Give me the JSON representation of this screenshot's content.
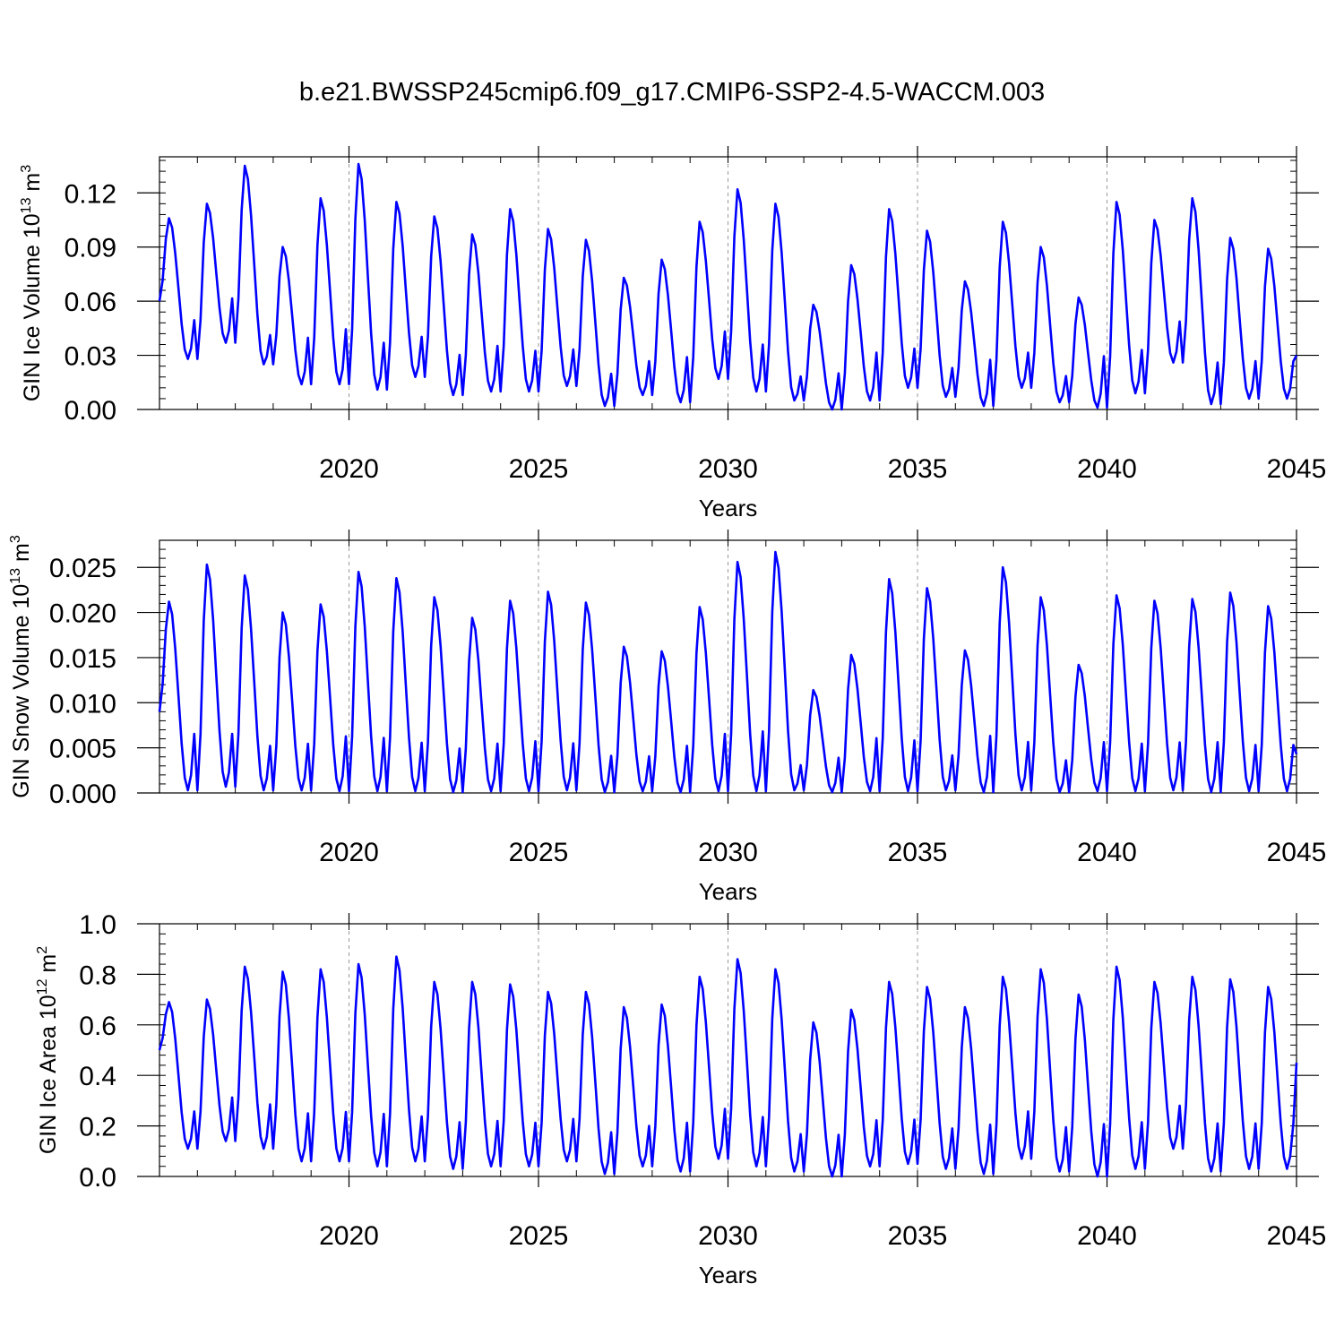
{
  "figure": {
    "title": "b.e21.BWSSP245cmip6.f09_g17.CMIP6-SSP2-4.5-WACCM.003"
  },
  "colors": {
    "line": "#0000ff",
    "axes": "#000000",
    "grid": "#999999"
  },
  "chart_data": [
    {
      "type": "line",
      "title": "",
      "xlabel": "Years",
      "ylabel": "GIN Ice Volume",
      "ylabel_unit_base": "10",
      "ylabel_unit_exp": "13",
      "ylabel_unit_tail": "m",
      "ylabel_unit_tail_exp": "3",
      "xlim": [
        2015,
        2045
      ],
      "ylim": [
        0,
        0.14
      ],
      "xticks": [
        2020,
        2025,
        2030,
        2035,
        2040,
        2045
      ],
      "xtick_labels": [
        "2020",
        "2025",
        "2030",
        "2035",
        "2040",
        "2045"
      ],
      "yticks": [
        0,
        0.03,
        0.06,
        0.09,
        0.12
      ],
      "ytick_labels": [
        "0.00",
        "0.03",
        "0.06",
        "0.09",
        "0.12"
      ],
      "grid": "vertical dashed at labeled x ticks",
      "seasonal": {
        "start_year": 2015,
        "maxima": [
          0.106,
          0.114,
          0.135,
          0.09,
          0.117,
          0.136,
          0.115,
          0.107,
          0.097,
          0.111,
          0.1,
          0.094,
          0.073,
          0.083,
          0.104,
          0.122,
          0.114,
          0.058,
          0.08,
          0.111,
          0.099,
          0.071,
          0.104,
          0.09,
          0.062,
          0.115,
          0.105,
          0.117,
          0.095,
          0.089
        ],
        "minima": [
          0.028,
          0.037,
          0.025,
          0.014,
          0.014,
          0.011,
          0.018,
          0.008,
          0.01,
          0.01,
          0.013,
          0.002,
          0.008,
          0.004,
          0.017,
          0.01,
          0.005,
          0.0,
          0.005,
          0.012,
          0.007,
          0.002,
          0.012,
          0.004,
          0.001,
          0.009,
          0.026,
          0.003,
          0.006,
          0.006
        ],
        "start_value": 0.06,
        "end_value": 0.03
      }
    },
    {
      "type": "line",
      "title": "",
      "xlabel": "Years",
      "ylabel": "GIN Snow Volume",
      "ylabel_unit_base": "10",
      "ylabel_unit_exp": "13",
      "ylabel_unit_tail": "m",
      "ylabel_unit_tail_exp": "3",
      "xlim": [
        2015,
        2045
      ],
      "ylim": [
        0,
        0.028
      ],
      "xticks": [
        2020,
        2025,
        2030,
        2035,
        2040,
        2045
      ],
      "xtick_labels": [
        "2020",
        "2025",
        "2030",
        "2035",
        "2040",
        "2045"
      ],
      "yticks": [
        0,
        0.005,
        0.01,
        0.015,
        0.02,
        0.025
      ],
      "ytick_labels": [
        "0.000",
        "0.005",
        "0.010",
        "0.015",
        "0.020",
        "0.025"
      ],
      "grid": "vertical dashed at labeled x ticks",
      "seasonal": {
        "start_year": 2015,
        "maxima": [
          0.0212,
          0.0253,
          0.0241,
          0.02,
          0.0209,
          0.0245,
          0.0238,
          0.0217,
          0.0194,
          0.0213,
          0.0223,
          0.0211,
          0.0162,
          0.0157,
          0.0206,
          0.0256,
          0.0267,
          0.0114,
          0.0153,
          0.0237,
          0.0227,
          0.0158,
          0.025,
          0.0217,
          0.0142,
          0.0219,
          0.0213,
          0.0215,
          0.0222,
          0.0207
        ],
        "minima": [
          0.0003,
          0.0007,
          0.0003,
          0.0003,
          0.0002,
          0.0002,
          0.0002,
          0.0001,
          0.0002,
          0.0002,
          0.0003,
          0.0001,
          0.0002,
          0.0001,
          0.0002,
          0.0002,
          0.0003,
          0.0001,
          0.0002,
          0.0002,
          0.0003,
          0.0001,
          0.0003,
          0.0001,
          0.0002,
          0.0002,
          0.0003,
          0.0001,
          0.0002,
          0.0002
        ],
        "start_value": 0.009,
        "end_value": 0.0043
      }
    },
    {
      "type": "line",
      "title": "",
      "xlabel": "Years",
      "ylabel": "GIN Ice Area",
      "ylabel_unit_base": "10",
      "ylabel_unit_exp": "12",
      "ylabel_unit_tail": "m",
      "ylabel_unit_tail_exp": "2",
      "xlim": [
        2015,
        2045
      ],
      "ylim": [
        0,
        1.0
      ],
      "xticks": [
        2020,
        2025,
        2030,
        2035,
        2040,
        2045
      ],
      "xtick_labels": [
        "2020",
        "2025",
        "2030",
        "2035",
        "2040",
        "2045"
      ],
      "yticks": [
        0,
        0.2,
        0.4,
        0.6,
        0.8,
        1.0
      ],
      "ytick_labels": [
        "0.0",
        "0.2",
        "0.4",
        "0.6",
        "0.8",
        "1.0"
      ],
      "grid": "vertical dashed at labeled x ticks",
      "seasonal": {
        "start_year": 2015,
        "maxima": [
          0.69,
          0.7,
          0.83,
          0.81,
          0.82,
          0.84,
          0.87,
          0.77,
          0.77,
          0.76,
          0.73,
          0.73,
          0.67,
          0.68,
          0.79,
          0.86,
          0.82,
          0.61,
          0.66,
          0.77,
          0.75,
          0.67,
          0.79,
          0.82,
          0.72,
          0.83,
          0.77,
          0.79,
          0.78,
          0.75
        ],
        "minima": [
          0.11,
          0.14,
          0.11,
          0.06,
          0.06,
          0.04,
          0.06,
          0.03,
          0.04,
          0.04,
          0.06,
          0.01,
          0.04,
          0.02,
          0.07,
          0.04,
          0.02,
          0.0,
          0.04,
          0.05,
          0.03,
          0.01,
          0.07,
          0.02,
          0.0,
          0.03,
          0.11,
          0.02,
          0.03,
          0.03
        ],
        "start_value": 0.5,
        "end_value": 0.45
      }
    }
  ]
}
